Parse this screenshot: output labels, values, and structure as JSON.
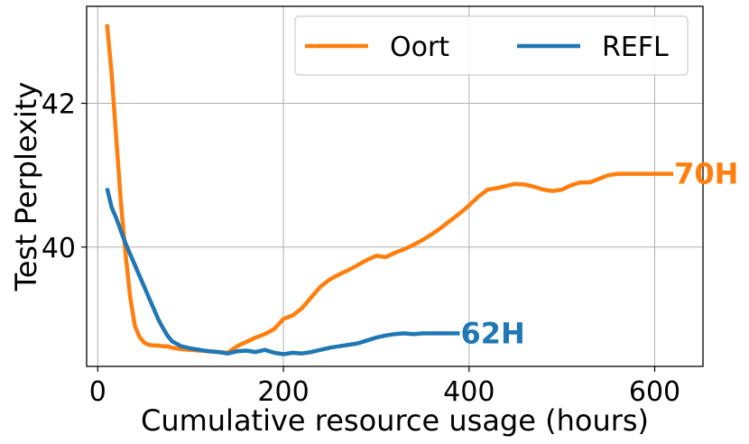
{
  "chart_data": {
    "type": "line",
    "title": "",
    "xlabel": "Cumulative resource usage (hours)",
    "ylabel": "Test Perplexity",
    "xlim": [
      -12,
      652
    ],
    "ylim": [
      38.34,
      43.35
    ],
    "xticks": [
      0,
      200,
      400,
      600
    ],
    "xtick_labels": [
      "0",
      "200",
      "400",
      "600"
    ],
    "yticks": [
      40,
      42
    ],
    "ytick_labels": [
      "40",
      "42"
    ],
    "grid": true,
    "legend": {
      "placement": "top-right",
      "columns": 2,
      "entries": [
        "Oort",
        "REFL"
      ]
    },
    "colors": {
      "Oort": "#ff7f0e",
      "REFL": "#1f77b4"
    },
    "series": [
      {
        "name": "Oort",
        "color": "#ff7f0e",
        "x": [
          10,
          15,
          20,
          25,
          30,
          35,
          40,
          45,
          50,
          55,
          60,
          65,
          70,
          75,
          80,
          90,
          100,
          110,
          120,
          130,
          140,
          150,
          160,
          170,
          180,
          190,
          200,
          210,
          220,
          230,
          240,
          250,
          260,
          270,
          280,
          290,
          300,
          310,
          320,
          330,
          340,
          350,
          360,
          370,
          380,
          390,
          400,
          410,
          420,
          430,
          440,
          450,
          460,
          470,
          480,
          490,
          500,
          510,
          520,
          530,
          540,
          550,
          560,
          570,
          580,
          590,
          600,
          610,
          620
        ],
        "y": [
          43.1,
          42.4,
          41.5,
          40.6,
          39.9,
          39.3,
          38.9,
          38.75,
          38.67,
          38.64,
          38.63,
          38.63,
          38.62,
          38.62,
          38.6,
          38.58,
          38.57,
          38.56,
          38.55,
          38.54,
          38.53,
          38.62,
          38.68,
          38.74,
          38.79,
          38.86,
          39.0,
          39.05,
          39.15,
          39.3,
          39.45,
          39.55,
          39.62,
          39.68,
          39.75,
          39.82,
          39.88,
          39.86,
          39.92,
          39.97,
          40.03,
          40.1,
          40.18,
          40.27,
          40.37,
          40.47,
          40.58,
          40.7,
          40.8,
          40.82,
          40.85,
          40.88,
          40.87,
          40.84,
          40.8,
          40.78,
          40.8,
          40.86,
          40.9,
          40.9,
          40.95,
          41.0,
          41.02,
          41.02,
          41.02,
          41.02,
          41.02,
          41.02,
          41.02
        ],
        "end_label": "70H"
      },
      {
        "name": "REFL",
        "color": "#1f77b4",
        "x": [
          10,
          15,
          20,
          25,
          30,
          35,
          40,
          45,
          50,
          55,
          60,
          65,
          70,
          75,
          80,
          90,
          100,
          110,
          120,
          130,
          140,
          150,
          160,
          170,
          180,
          190,
          200,
          210,
          220,
          230,
          240,
          250,
          260,
          270,
          280,
          290,
          300,
          310,
          320,
          330,
          340,
          350,
          360,
          370,
          380,
          390
        ],
        "y": [
          40.82,
          40.55,
          40.4,
          40.22,
          40.05,
          39.9,
          39.75,
          39.6,
          39.45,
          39.3,
          39.15,
          39.0,
          38.88,
          38.77,
          38.69,
          38.62,
          38.59,
          38.57,
          38.55,
          38.54,
          38.52,
          38.55,
          38.56,
          38.54,
          38.57,
          38.53,
          38.51,
          38.53,
          38.52,
          38.54,
          38.57,
          38.6,
          38.62,
          38.64,
          38.66,
          38.7,
          38.74,
          38.77,
          38.79,
          38.8,
          38.79,
          38.8,
          38.8,
          38.8,
          38.8,
          38.8
        ],
        "end_label": "62H"
      }
    ]
  }
}
